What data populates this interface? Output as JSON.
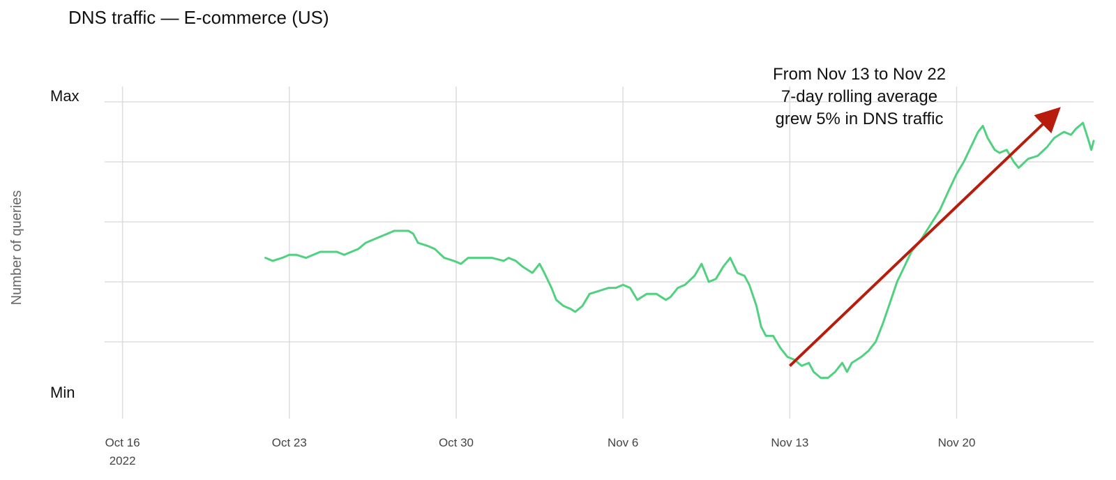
{
  "chart_data": {
    "type": "line",
    "title": "DNS traffic — E-commerce (US)",
    "xlabel": "",
    "ylabel": "Number of queries",
    "y_tick_labels": {
      "max": "Max",
      "min": "Min"
    },
    "x_ticks": [
      {
        "label": "Oct 16",
        "sublabel": "2022",
        "day": 0
      },
      {
        "label": "Oct 23",
        "day": 7
      },
      {
        "label": "Oct 30",
        "day": 14
      },
      {
        "label": "Nov 6",
        "day": 21
      },
      {
        "label": "Nov 13",
        "day": 28
      },
      {
        "label": "Nov 20",
        "day": 35
      }
    ],
    "xlim_days": [
      -0.75,
      40.75
    ],
    "ylim": [
      -0.08,
      1.04
    ],
    "grid": true,
    "series": [
      {
        "color": "#4fd17f",
        "points": [
          [
            6.0,
            0.48
          ],
          [
            6.3,
            0.47
          ],
          [
            6.7,
            0.48
          ],
          [
            7.0,
            0.49
          ],
          [
            7.3,
            0.49
          ],
          [
            7.7,
            0.48
          ],
          [
            8.0,
            0.49
          ],
          [
            8.3,
            0.5
          ],
          [
            8.7,
            0.5
          ],
          [
            9.0,
            0.5
          ],
          [
            9.3,
            0.49
          ],
          [
            9.6,
            0.5
          ],
          [
            9.9,
            0.51
          ],
          [
            10.2,
            0.53
          ],
          [
            10.5,
            0.54
          ],
          [
            10.8,
            0.55
          ],
          [
            11.1,
            0.56
          ],
          [
            11.4,
            0.57
          ],
          [
            11.7,
            0.57
          ],
          [
            12.0,
            0.57
          ],
          [
            12.2,
            0.56
          ],
          [
            12.4,
            0.53
          ],
          [
            12.8,
            0.52
          ],
          [
            13.1,
            0.51
          ],
          [
            13.5,
            0.48
          ],
          [
            13.9,
            0.47
          ],
          [
            14.2,
            0.46
          ],
          [
            14.5,
            0.48
          ],
          [
            15.0,
            0.48
          ],
          [
            15.5,
            0.48
          ],
          [
            16.0,
            0.47
          ],
          [
            16.2,
            0.48
          ],
          [
            16.5,
            0.47
          ],
          [
            16.8,
            0.45
          ],
          [
            17.2,
            0.43
          ],
          [
            17.5,
            0.46
          ],
          [
            17.7,
            0.43
          ],
          [
            18.0,
            0.38
          ],
          [
            18.2,
            0.34
          ],
          [
            18.5,
            0.32
          ],
          [
            18.8,
            0.31
          ],
          [
            19.0,
            0.3
          ],
          [
            19.3,
            0.32
          ],
          [
            19.6,
            0.36
          ],
          [
            20.0,
            0.37
          ],
          [
            20.4,
            0.38
          ],
          [
            20.7,
            0.38
          ],
          [
            21.0,
            0.39
          ],
          [
            21.3,
            0.38
          ],
          [
            21.6,
            0.34
          ],
          [
            22.0,
            0.36
          ],
          [
            22.4,
            0.36
          ],
          [
            22.8,
            0.34
          ],
          [
            23.0,
            0.35
          ],
          [
            23.3,
            0.38
          ],
          [
            23.6,
            0.39
          ],
          [
            24.0,
            0.42
          ],
          [
            24.3,
            0.46
          ],
          [
            24.6,
            0.4
          ],
          [
            24.9,
            0.41
          ],
          [
            25.2,
            0.45
          ],
          [
            25.5,
            0.48
          ],
          [
            25.8,
            0.43
          ],
          [
            26.1,
            0.42
          ],
          [
            26.3,
            0.39
          ],
          [
            26.6,
            0.32
          ],
          [
            26.8,
            0.25
          ],
          [
            27.0,
            0.22
          ],
          [
            27.3,
            0.22
          ],
          [
            27.6,
            0.18
          ],
          [
            27.9,
            0.15
          ],
          [
            28.2,
            0.14
          ],
          [
            28.5,
            0.12
          ],
          [
            28.8,
            0.13
          ],
          [
            29.0,
            0.1
          ],
          [
            29.3,
            0.08
          ],
          [
            29.6,
            0.08
          ],
          [
            29.9,
            0.1
          ],
          [
            30.2,
            0.13
          ],
          [
            30.4,
            0.1
          ],
          [
            30.6,
            0.13
          ],
          [
            31.0,
            0.15
          ],
          [
            31.3,
            0.17
          ],
          [
            31.6,
            0.2
          ],
          [
            31.9,
            0.26
          ],
          [
            32.2,
            0.33
          ],
          [
            32.5,
            0.4
          ],
          [
            32.8,
            0.45
          ],
          [
            33.1,
            0.5
          ],
          [
            33.5,
            0.54
          ],
          [
            33.9,
            0.59
          ],
          [
            34.3,
            0.64
          ],
          [
            34.7,
            0.71
          ],
          [
            35.0,
            0.76
          ],
          [
            35.3,
            0.8
          ],
          [
            35.6,
            0.85
          ],
          [
            35.9,
            0.9
          ],
          [
            36.1,
            0.92
          ],
          [
            36.3,
            0.88
          ],
          [
            36.6,
            0.84
          ],
          [
            36.8,
            0.83
          ],
          [
            37.1,
            0.84
          ],
          [
            37.4,
            0.8
          ],
          [
            37.6,
            0.78
          ],
          [
            38.0,
            0.81
          ],
          [
            38.4,
            0.82
          ],
          [
            38.8,
            0.85
          ],
          [
            39.1,
            0.88
          ],
          [
            39.5,
            0.9
          ],
          [
            39.8,
            0.89
          ],
          [
            40.0,
            0.91
          ],
          [
            40.3,
            0.93
          ],
          [
            40.5,
            0.88
          ],
          [
            40.65,
            0.84
          ],
          [
            40.75,
            0.87
          ]
        ]
      }
    ],
    "annotation": {
      "lines": [
        "From Nov 13 to Nov 22",
        "7-day rolling average",
        "grew 5% in DNS traffic"
      ],
      "arrow_color": "#b71c0c",
      "arrow_from": [
        28.0,
        0.12
      ],
      "arrow_to": [
        39.2,
        0.97
      ]
    }
  }
}
